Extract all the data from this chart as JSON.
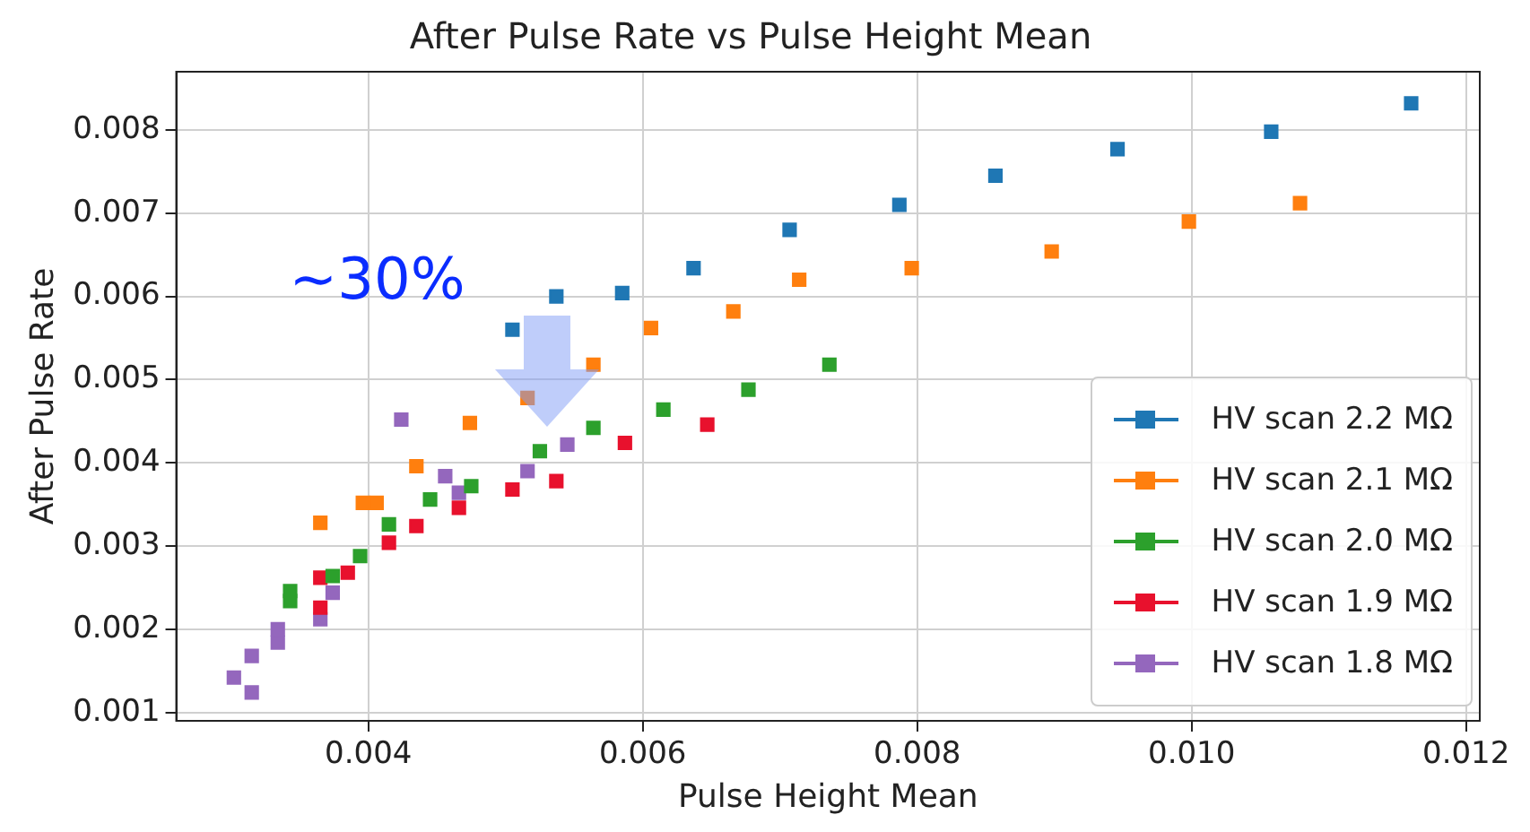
{
  "chart_data": {
    "type": "scatter",
    "title": "After Pulse Rate vs Pulse Height Mean",
    "xlabel": "Pulse Height Mean",
    "ylabel": "After Pulse Rate",
    "annotations": [
      "~30%"
    ],
    "xlim": [
      0.0026,
      0.0121
    ],
    "xticks": [
      0.004,
      0.006,
      0.008,
      {
        "value": 0.01,
        "label": "0.010"
      },
      0.012
    ],
    "ylim": [
      0.0009,
      0.0087
    ],
    "yticks": [
      0.001,
      0.002,
      0.003,
      0.004,
      0.005,
      0.006,
      0.007,
      0.008
    ],
    "grid": true,
    "legend": "bottom right",
    "marker": "square",
    "series": [
      {
        "name": "HV scan 2.2 MΩ",
        "color": "#1f77b4",
        "x": [
          0.00505,
          0.00537,
          0.00585,
          0.00637,
          0.00707,
          0.00787,
          0.00857,
          0.00946,
          0.01058,
          0.0116
        ],
        "values": [
          0.0056,
          0.006,
          0.00604,
          0.00634,
          0.0068,
          0.0071,
          0.00745,
          0.00777,
          0.00798,
          0.00832
        ]
      },
      {
        "name": "HV scan 2.1 MΩ",
        "color": "#ff7f0e",
        "x": [
          0.00365,
          0.00396,
          0.00406,
          0.00435,
          0.00474,
          0.00516,
          0.00564,
          0.00606,
          0.00666,
          0.00714,
          0.00796,
          0.00898,
          0.00998,
          0.01079
        ],
        "values": [
          0.00328,
          0.00352,
          0.00352,
          0.00396,
          0.00448,
          0.00478,
          0.00518,
          0.00562,
          0.00582,
          0.0062,
          0.00634,
          0.00654,
          0.0069,
          0.00712
        ]
      },
      {
        "name": "HV scan 2.0 MΩ",
        "color": "#2ca02c",
        "x": [
          0.00343,
          0.00343,
          0.00374,
          0.00394,
          0.00415,
          0.00445,
          0.00475,
          0.00525,
          0.00564,
          0.00615,
          0.00677,
          0.00736
        ],
        "values": [
          0.00246,
          0.00234,
          0.00264,
          0.00288,
          0.00326,
          0.00356,
          0.00372,
          0.00414,
          0.00442,
          0.00464,
          0.00488,
          0.00518
        ]
      },
      {
        "name": "HV scan 1.9 MΩ",
        "color": "#e8112d",
        "x": [
          0.00365,
          0.00365,
          0.00385,
          0.00415,
          0.00435,
          0.00466,
          0.00505,
          0.00537,
          0.00587,
          0.00647
        ],
        "values": [
          0.00226,
          0.00262,
          0.00268,
          0.00304,
          0.00324,
          0.00346,
          0.00368,
          0.00378,
          0.00424,
          0.00446
        ]
      },
      {
        "name": "HV scan 1.8 MΩ",
        "color": "#9467bd",
        "x": [
          0.00302,
          0.00315,
          0.00315,
          0.00334,
          0.00334,
          0.00365,
          0.00374,
          0.00424,
          0.00456,
          0.00466,
          0.00516,
          0.00545
        ],
        "values": [
          0.00142,
          0.00124,
          0.00168,
          0.00184,
          0.002,
          0.00212,
          0.00244,
          0.00452,
          0.00384,
          0.00364,
          0.0039,
          0.00422
        ]
      }
    ]
  }
}
